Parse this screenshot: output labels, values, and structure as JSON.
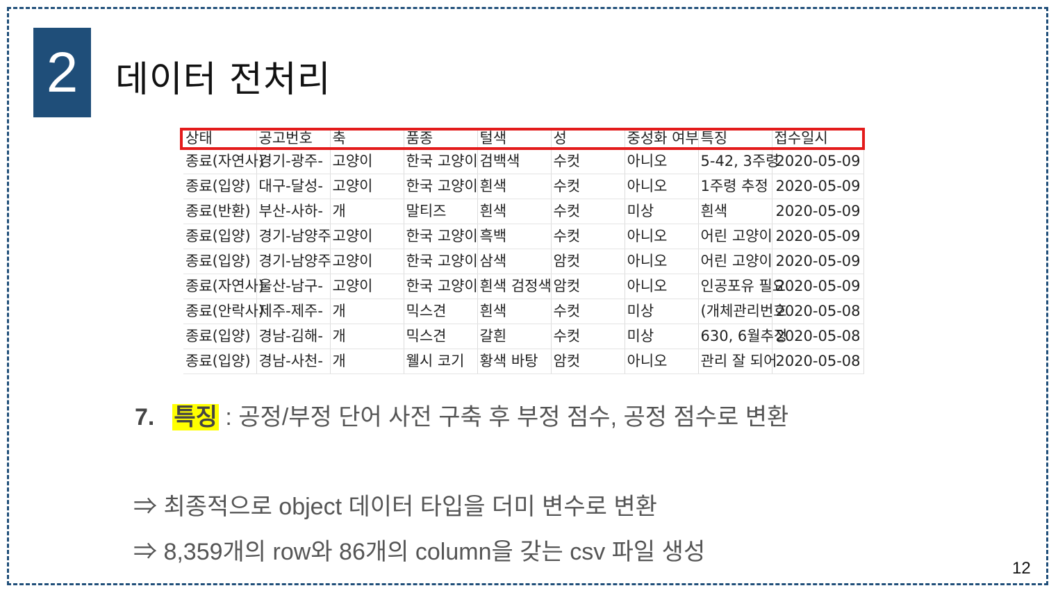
{
  "slide": {
    "section_number": "2",
    "title": "데이터 전처리",
    "page_number": "12"
  },
  "table": {
    "headers": [
      "상태",
      "공고번호",
      "축",
      "품종",
      "털색",
      "성",
      "중성화 여부",
      "특징",
      "접수일시"
    ],
    "rows": [
      [
        "종료(자연사)",
        "경기-광주-",
        "고양이",
        "한국 고양이",
        "검백색",
        "수컷",
        "아니오",
        "5-42, 3주령",
        "2020-05-09"
      ],
      [
        "종료(입양)",
        "대구-달성-",
        "고양이",
        "한국 고양이",
        "흰색",
        "수컷",
        "아니오",
        "1주령 추정",
        "2020-05-09"
      ],
      [
        "종료(반환)",
        "부산-사하-",
        "개",
        "말티즈",
        "흰색",
        "수컷",
        "미상",
        "흰색",
        "2020-05-09"
      ],
      [
        "종료(입양)",
        "경기-남양주",
        "고양이",
        "한국 고양이",
        "흑백",
        "수컷",
        "아니오",
        "어린 고양이",
        "2020-05-09"
      ],
      [
        "종료(입양)",
        "경기-남양주",
        "고양이",
        "한국 고양이",
        "삼색",
        "암컷",
        "아니오",
        "어린 고양이",
        "2020-05-09"
      ],
      [
        "종료(자연사)",
        "울산-남구-",
        "고양이",
        "한국 고양이",
        "흰색 검정색",
        "암컷",
        "아니오",
        "인공포유 필요",
        "2020-05-09"
      ],
      [
        "종료(안락사)",
        "제주-제주-",
        "개",
        "믹스견",
        "흰색",
        "수컷",
        "미상",
        "(개체관리번호",
        "2020-05-08"
      ],
      [
        "종료(입양)",
        "경남-김해-",
        "개",
        "믹스견",
        "갈흰",
        "수컷",
        "미상",
        "630, 6월추정",
        "2020-05-08"
      ],
      [
        "종료(입양)",
        "경남-사천-",
        "개",
        "웰시 코기",
        "황색 바탕",
        "암컷",
        "아니오",
        "관리 잘 되어",
        "2020-05-08"
      ]
    ]
  },
  "point": {
    "number": "7.",
    "keyword": "특징",
    "text": " : 공정/부정 단어 사전 구축 후 부정 점수, 공정 점수로 변환"
  },
  "conclusions": [
    "⇒ 최종적으로 object 데이터 타입을 더미 변수로 변환",
    "⇒ 8,359개의 row와 86개의 column을 갖는 csv 파일 생성"
  ],
  "colors": {
    "accent": "#1f4e79",
    "highlight_box": "#e31b1b",
    "keyword_highlight": "#ffff00"
  }
}
